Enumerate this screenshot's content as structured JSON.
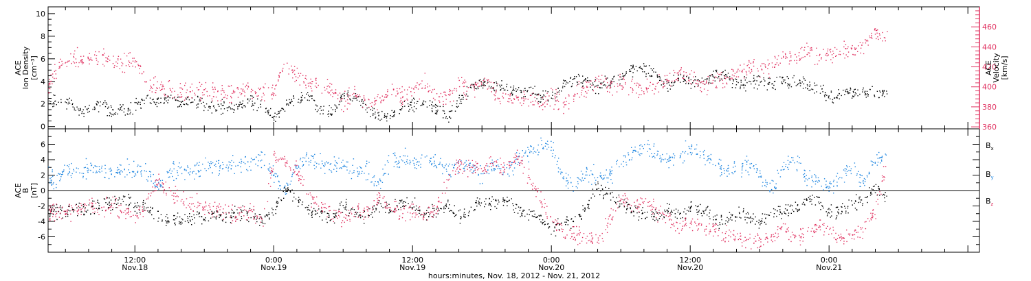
{
  "colors": {
    "black": "#000000",
    "blue": "#1f86e0",
    "red": "#e0305f",
    "axis": "#000000"
  },
  "footer": {
    "time_axis_label": "hours:minutes, Nov. 18, 2012 - Nov. 21, 2012"
  },
  "chart_data": [
    {
      "type": "scatter",
      "panel": "top",
      "ylabel_left": [
        "ACE",
        "Ion Density",
        "[cm⁻³]"
      ],
      "ylabel_right": [
        "ACE",
        "Velocity",
        "[km/s]"
      ],
      "x_tick_labels": [
        {
          "hours": 12,
          "time": "12:00",
          "date": "Nov.18"
        },
        {
          "hours": 24,
          "time": "0:00",
          "date": "Nov.19"
        },
        {
          "hours": 36,
          "time": "12:00",
          "date": "Nov.19"
        },
        {
          "hours": 48,
          "time": "0:00",
          "date": "Nov.20"
        },
        {
          "hours": 60,
          "time": "12:00",
          "date": "Nov.20"
        },
        {
          "hours": 72,
          "time": "0:00",
          "date": "Nov.21"
        }
      ],
      "xlim_hours": [
        4.5,
        85
      ],
      "ylim_left": [
        -0.2,
        10.6
      ],
      "yticks_left": [
        0,
        2,
        4,
        6,
        8,
        10
      ],
      "ylim_right": [
        358,
        480
      ],
      "yticks_right": [
        360,
        380,
        400,
        420,
        440,
        460
      ],
      "grid": false,
      "series": [
        {
          "color": "#000000",
          "axis": "left",
          "x": [
            4.5,
            6,
            7,
            8,
            9,
            10,
            11,
            12,
            13,
            14,
            15,
            16,
            17,
            18,
            19,
            20,
            21,
            22,
            23,
            24,
            25,
            26,
            27,
            28,
            29,
            30,
            31,
            32,
            33,
            34,
            35,
            36,
            37,
            38,
            39,
            40,
            41,
            42,
            43,
            44,
            45,
            46,
            47,
            48,
            49,
            50,
            51,
            52,
            53,
            54,
            55,
            56,
            57,
            58,
            59,
            60,
            61,
            62,
            63,
            64,
            65,
            66,
            67,
            68,
            69,
            70,
            71,
            72,
            73,
            74,
            75,
            76,
            77
          ],
          "y": [
            2.2,
            2.4,
            1.6,
            1.3,
            2.2,
            1.3,
            1.5,
            1.7,
            2.4,
            2.1,
            2.6,
            2.1,
            2.4,
            2.0,
            1.7,
            1.8,
            2.0,
            2.2,
            1.9,
            0.8,
            1.9,
            2.5,
            2.7,
            1.6,
            1.2,
            2.8,
            2.6,
            1.8,
            1.0,
            0.8,
            1.6,
            2.0,
            2.2,
            1.6,
            0.8,
            2.1,
            3.6,
            3.8,
            3.4,
            3.5,
            3.0,
            3.3,
            2.6,
            2.6,
            3.8,
            4.2,
            4.0,
            3.5,
            4.0,
            4.5,
            5.1,
            5.3,
            4.6,
            3.7,
            4.3,
            4.0,
            4.1,
            4.5,
            4.6,
            4.0,
            3.8,
            4.0,
            3.7,
            4.2,
            4.0,
            3.8,
            3.4,
            2.7,
            2.9,
            3.0,
            3.1,
            3.0,
            3.1
          ]
        },
        {
          "color": "#e0305f",
          "axis": "right",
          "x": [
            4.5,
            5,
            6,
            7,
            8,
            9,
            10,
            11,
            12,
            13,
            14,
            15,
            16,
            17,
            18,
            19,
            20,
            21,
            22,
            23,
            24,
            25,
            26,
            27,
            28,
            29,
            30,
            31,
            32,
            33,
            34,
            35,
            36,
            37,
            38,
            39,
            40,
            41,
            42,
            43,
            44,
            45,
            46,
            47,
            48,
            49,
            50,
            51,
            52,
            53,
            54,
            55,
            56,
            57,
            58,
            59,
            60,
            61,
            62,
            63,
            64,
            65,
            66,
            67,
            68,
            69,
            70,
            71,
            72,
            73,
            74,
            75,
            76,
            77
          ],
          "y": [
            400,
            415,
            425,
            430,
            427,
            430,
            428,
            425,
            427,
            402,
            400,
            397,
            395,
            394,
            396,
            395,
            393,
            397,
            395,
            394,
            398,
            424,
            415,
            402,
            405,
            395,
            386,
            392,
            385,
            386,
            398,
            390,
            397,
            403,
            388,
            391,
            403,
            397,
            407,
            397,
            387,
            392,
            388,
            384,
            390,
            382,
            395,
            400,
            405,
            402,
            403,
            400,
            399,
            402,
            404,
            412,
            410,
            403,
            406,
            410,
            416,
            420,
            418,
            420,
            432,
            428,
            436,
            430,
            433,
            436,
            438,
            441,
            455,
            450
          ]
        }
      ]
    },
    {
      "type": "scatter",
      "panel": "bottom",
      "ylabel": [
        "ACE",
        "B",
        "[nT]"
      ],
      "x_tick_labels": [
        {
          "hours": 12,
          "time": "12:00",
          "date": "Nov.18"
        },
        {
          "hours": 24,
          "time": "0:00",
          "date": "Nov.19"
        },
        {
          "hours": 36,
          "time": "12:00",
          "date": "Nov.19"
        },
        {
          "hours": 48,
          "time": "0:00",
          "date": "Nov.20"
        },
        {
          "hours": 60,
          "time": "12:00",
          "date": "Nov.20"
        },
        {
          "hours": 72,
          "time": "0:00",
          "date": "Nov.21"
        }
      ],
      "xlim_hours": [
        4.5,
        85
      ],
      "ylim": [
        -8,
        8
      ],
      "yticks": [
        -6,
        -4,
        -2,
        0,
        2,
        4,
        6
      ],
      "zero_line": true,
      "grid": false,
      "legend_position": "right",
      "series": [
        {
          "name": "B",
          "subscript": "x",
          "color": "#000000",
          "x": [
            4.5,
            5,
            6,
            7,
            8,
            9,
            10,
            11,
            12,
            13,
            14,
            15,
            16,
            17,
            18,
            19,
            20,
            21,
            22,
            23,
            24,
            25,
            26,
            27,
            28,
            29,
            30,
            31,
            32,
            33,
            34,
            35,
            36,
            37,
            38,
            39,
            40,
            41,
            42,
            43,
            44,
            45,
            46,
            47,
            48,
            49,
            50,
            51,
            52,
            53,
            54,
            55,
            56,
            57,
            58,
            59,
            60,
            61,
            62,
            63,
            64,
            65,
            66,
            67,
            68,
            69,
            70,
            71,
            72,
            73,
            74,
            75,
            76,
            77
          ],
          "y": [
            -2.5,
            -2.6,
            -2.8,
            -2.2,
            -2.5,
            -1.5,
            -1.8,
            -1.0,
            -1.7,
            -2.0,
            -3.5,
            -3.6,
            -3.8,
            -3.5,
            -3.3,
            -3.0,
            -3.0,
            -2.8,
            -3.1,
            -4.0,
            -2.5,
            0.2,
            -1.0,
            -2.5,
            -3.0,
            -3.5,
            -2.0,
            -2.7,
            -3.5,
            -1.8,
            -2.5,
            -1.5,
            -2.0,
            -3.0,
            -2.8,
            -2.0,
            -3.5,
            -2.8,
            -1.0,
            -1.6,
            -1.2,
            -2.5,
            -3.0,
            -3.5,
            -5.0,
            -4.0,
            -4.0,
            -2.0,
            0.5,
            -0.8,
            -1.5,
            -2.5,
            -3.0,
            -3.4,
            -2.3,
            -3.4,
            -2.0,
            -2.5,
            -3.5,
            -4.0,
            -3.0,
            -3.3,
            -4.0,
            -3.0,
            -2.7,
            -2.5,
            -1.4,
            -1.2,
            -3.0,
            -2.6,
            -1.8,
            -0.8,
            0.5,
            -1.0
          ]
        },
        {
          "name": "B",
          "subscript": "y",
          "color": "#1f86e0",
          "x": [
            4.5,
            5,
            6,
            7,
            8,
            9,
            10,
            11,
            12,
            13,
            14,
            15,
            16,
            17,
            18,
            19,
            20,
            21,
            22,
            23,
            24,
            25,
            26,
            27,
            28,
            29,
            30,
            31,
            32,
            33,
            34,
            35,
            36,
            37,
            38,
            39,
            40,
            41,
            42,
            43,
            44,
            45,
            46,
            47,
            48,
            49,
            50,
            51,
            52,
            53,
            54,
            55,
            56,
            57,
            58,
            59,
            60,
            61,
            62,
            63,
            64,
            65,
            66,
            67,
            68,
            69,
            70,
            71,
            72,
            73,
            74,
            75,
            76,
            77
          ],
          "y": [
            2.0,
            1.0,
            3.0,
            2.3,
            3.0,
            3.0,
            2.5,
            2.8,
            2.8,
            2.5,
            0.5,
            2.5,
            2.6,
            2.8,
            3.0,
            3.3,
            3.2,
            3.5,
            3.5,
            4.5,
            2.0,
            0.0,
            3.5,
            4.0,
            3.8,
            3.2,
            3.4,
            2.5,
            3.0,
            1.0,
            3.8,
            4.2,
            3.8,
            3.6,
            3.8,
            2.8,
            3.0,
            3.5,
            1.8,
            3.5,
            2.5,
            4.0,
            5.2,
            6.0,
            6.0,
            1.5,
            0.8,
            2.5,
            1.5,
            2.0,
            3.5,
            5.0,
            5.8,
            4.8,
            3.8,
            5.0,
            5.5,
            4.8,
            3.5,
            3.0,
            2.5,
            3.5,
            2.0,
            0.0,
            3.0,
            4.0,
            2.0,
            1.5,
            0.5,
            2.0,
            3.0,
            1.0,
            4.0,
            4.5
          ]
        },
        {
          "name": "B",
          "subscript": "z",
          "color": "#e0305f",
          "x": [
            4.5,
            5,
            6,
            7,
            8,
            9,
            10,
            11,
            12,
            13,
            14,
            15,
            16,
            17,
            18,
            19,
            20,
            21,
            22,
            23,
            24,
            25,
            26,
            27,
            28,
            29,
            30,
            31,
            32,
            33,
            34,
            35,
            36,
            37,
            38,
            39,
            40,
            41,
            42,
            43,
            44,
            45,
            46,
            47,
            48,
            49,
            50,
            51,
            52,
            53,
            54,
            55,
            56,
            57,
            58,
            59,
            60,
            61,
            62,
            63,
            64,
            65,
            66,
            67,
            68,
            69,
            70,
            71,
            72,
            73,
            74,
            75,
            76,
            77
          ],
          "y": [
            -2.8,
            -2.5,
            -2.7,
            -2.5,
            -1.8,
            -2.2,
            -1.6,
            -2.8,
            -3.0,
            -1.5,
            1.5,
            -0.5,
            -1.0,
            -1.6,
            -2.0,
            -2.5,
            -2.8,
            -3.0,
            -2.5,
            -4.0,
            4.5,
            4.0,
            2.5,
            -0.5,
            -2.0,
            -3.0,
            -3.5,
            -2.5,
            -3.0,
            -1.0,
            -2.0,
            -3.0,
            -2.5,
            -3.0,
            -2.8,
            1.5,
            3.5,
            3.0,
            3.0,
            3.8,
            3.0,
            4.5,
            2.0,
            -1.0,
            -4.0,
            -5.5,
            -5.8,
            -6.0,
            -6.2,
            -4.0,
            -1.0,
            -2.0,
            -1.0,
            -2.5,
            -3.5,
            -4.5,
            -4.0,
            -4.5,
            -4.8,
            -6.0,
            -5.5,
            -6.5,
            -6.5,
            -6.0,
            -5.0,
            -6.0,
            -5.5,
            -4.5,
            -5.0,
            -6.0,
            -5.5,
            -5.0,
            -2.5,
            4.5
          ]
        }
      ]
    }
  ]
}
